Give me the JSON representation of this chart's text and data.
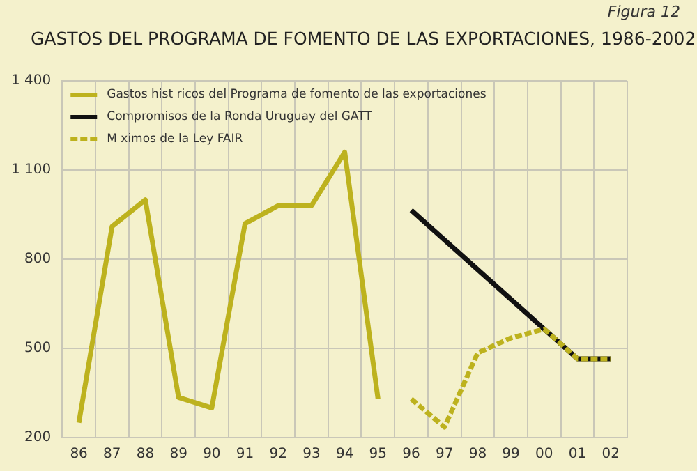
{
  "chart_data": {
    "type": "line",
    "title": "GASTOS DEL PROGRAMA DE FOMENTO DE LAS EXPORTACIONES, 1986-2002",
    "annotations": [
      "Figura 12"
    ],
    "categories": [
      "86",
      "87",
      "88",
      "89",
      "90",
      "91",
      "92",
      "93",
      "94",
      "95",
      "96",
      "97",
      "98",
      "99",
      "00",
      "01",
      "02"
    ],
    "series": [
      {
        "name": "Gastos hist ricos del Programa de fomento de las exportaciones",
        "color": "#bdb21e",
        "line_style": "solid",
        "values": [
          250,
          910,
          1000,
          335,
          300,
          920,
          980,
          980,
          1160,
          330,
          null,
          null,
          null,
          null,
          null,
          null,
          null
        ]
      },
      {
        "name": "Compromisos de la Ronda Uruguay del GATT",
        "color": "#111111",
        "line_style": "solid",
        "values": [
          null,
          null,
          null,
          null,
          null,
          null,
          null,
          null,
          null,
          null,
          965,
          null,
          null,
          null,
          565,
          465,
          465
        ]
      },
      {
        "name": "M ximos de la Ley FAIR",
        "color": "#bdb21e",
        "line_style": "dashed",
        "values": [
          null,
          null,
          null,
          null,
          null,
          null,
          null,
          null,
          null,
          null,
          330,
          235,
          485,
          535,
          565,
          465,
          465
        ]
      }
    ],
    "ylim": [
      200,
      1400
    ],
    "yticks": [
      {
        "value": 200,
        "label": "200"
      },
      {
        "value": 500,
        "label": "500"
      },
      {
        "value": 800,
        "label": "800"
      },
      {
        "value": 1100,
        "label": "1 100"
      },
      {
        "value": 1400,
        "label": "1 400"
      }
    ],
    "grid": true,
    "legend": "top left",
    "marker": "none"
  }
}
